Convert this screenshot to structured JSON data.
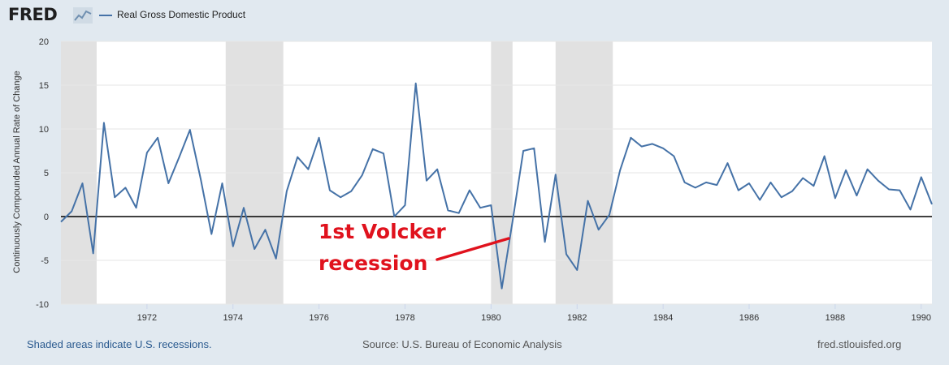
{
  "header": {
    "logo_text": "FRED",
    "logo_icon": "line-chart-icon",
    "series_name": "Real Gross Domestic Product"
  },
  "footer": {
    "recession_note": "Shaded areas indicate U.S. recessions.",
    "source": "Source: U.S. Bureau of Economic Analysis",
    "site": "fred.stlouisfed.org"
  },
  "annotation": {
    "line1": "1st Volcker",
    "line2": "recession",
    "color": "#e0121d"
  },
  "colors": {
    "series": "#4572a7",
    "recession": "#e1e1e1",
    "plot_bg": "#ffffff",
    "page_bg": "#e1e9f0"
  },
  "chart_data": {
    "type": "line",
    "title": "",
    "xlabel": "",
    "ylabel": "Continuously Compounded Annual Rate of Change",
    "xlim": [
      1970.0,
      1990.25
    ],
    "ylim": [
      -10,
      20
    ],
    "yticks": [
      -10,
      -5,
      0,
      5,
      10,
      15,
      20
    ],
    "xticks": [
      1972,
      1974,
      1976,
      1978,
      1980,
      1982,
      1984,
      1986,
      1988,
      1990
    ],
    "grid": true,
    "zero_line": true,
    "recessions": [
      [
        1970.0,
        1970.83
      ],
      [
        1973.83,
        1975.17
      ],
      [
        1980.0,
        1980.5
      ],
      [
        1981.5,
        1982.83
      ]
    ],
    "series": [
      {
        "name": "Real Gross Domestic Product",
        "x": [
          1970.0,
          1970.25,
          1970.5,
          1970.75,
          1971.0,
          1971.25,
          1971.5,
          1971.75,
          1972.0,
          1972.25,
          1972.5,
          1972.75,
          1973.0,
          1973.25,
          1973.5,
          1973.75,
          1974.0,
          1974.25,
          1974.5,
          1974.75,
          1975.0,
          1975.25,
          1975.5,
          1975.75,
          1976.0,
          1976.25,
          1976.5,
          1976.75,
          1977.0,
          1977.25,
          1977.5,
          1977.75,
          1978.0,
          1978.25,
          1978.5,
          1978.75,
          1979.0,
          1979.25,
          1979.5,
          1979.75,
          1980.0,
          1980.25,
          1980.5,
          1980.75,
          1981.0,
          1981.25,
          1981.5,
          1981.75,
          1982.0,
          1982.25,
          1982.5,
          1982.75,
          1983.0,
          1983.25,
          1983.5,
          1983.75,
          1984.0,
          1984.25,
          1984.5,
          1984.75,
          1985.0,
          1985.25,
          1985.5,
          1985.75,
          1986.0,
          1986.25,
          1986.5,
          1986.75,
          1987.0,
          1987.25,
          1987.5,
          1987.75,
          1988.0,
          1988.25,
          1988.5,
          1988.75,
          1989.0,
          1989.25,
          1989.5,
          1989.75,
          1990.0,
          1990.25
        ],
        "values": [
          -0.6,
          0.6,
          3.8,
          -4.2,
          10.7,
          2.2,
          3.3,
          1.0,
          7.3,
          9.0,
          3.8,
          6.8,
          9.9,
          4.3,
          -2.0,
          3.8,
          -3.4,
          1.0,
          -3.7,
          -1.5,
          -4.8,
          2.9,
          6.8,
          5.4,
          9.0,
          3.0,
          2.2,
          2.9,
          4.7,
          7.7,
          7.2,
          0.0,
          1.3,
          15.2,
          4.1,
          5.4,
          0.7,
          0.4,
          3.0,
          1.0,
          1.3,
          -8.2,
          -0.5,
          7.5,
          7.8,
          -2.9,
          4.8,
          -4.3,
          -6.1,
          1.8,
          -1.5,
          0.2,
          5.3,
          9.0,
          8.0,
          8.3,
          7.8,
          6.9,
          3.9,
          3.3,
          3.9,
          3.6,
          6.1,
          3.0,
          3.8,
          1.9,
          3.9,
          2.2,
          2.9,
          4.4,
          3.5,
          6.9,
          2.1,
          5.3,
          2.4,
          5.4,
          4.1,
          3.1,
          3.0,
          0.8,
          4.5,
          1.4
        ]
      }
    ]
  }
}
